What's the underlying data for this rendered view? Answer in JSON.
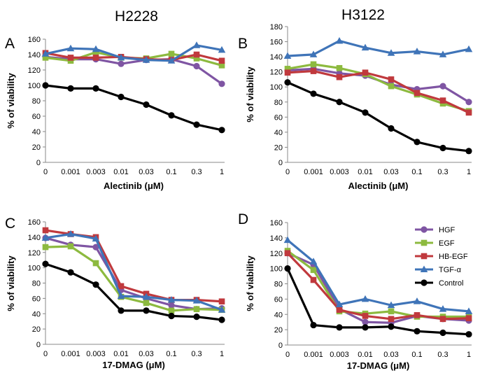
{
  "figure": {
    "col_titles": [
      "H2228",
      "H3122"
    ],
    "legend": [
      "HGF",
      "EGF",
      "HB-EGF",
      "TGF-α",
      "Control"
    ],
    "colors": {
      "HGF": "#7f55a3",
      "EGF": "#8dba3f",
      "HB-EGF": "#c0393d",
      "TGF-α": "#3f74b8",
      "Control": "#000000"
    }
  },
  "chart_data": [
    {
      "type": "line",
      "panel": "A",
      "title": "H2228",
      "xlabel": "Alectinib (μM)",
      "ylabel": "% of viability",
      "categories": [
        "0",
        "0.001",
        "0.003",
        "0.01",
        "0.03",
        "0.1",
        "0.3",
        "1"
      ],
      "ylim": [
        0,
        160
      ],
      "yticks": [
        0,
        20,
        40,
        60,
        80,
        100,
        120,
        140,
        160
      ],
      "grid": false,
      "series": [
        {
          "name": "HGF",
          "values": [
            137,
            134,
            134,
            128,
            133,
            134,
            125,
            102
          ]
        },
        {
          "name": "EGF",
          "values": [
            136,
            132,
            143,
            136,
            135,
            141,
            135,
            126
          ]
        },
        {
          "name": "HB-EGF",
          "values": [
            142,
            136,
            136,
            137,
            134,
            133,
            140,
            132
          ]
        },
        {
          "name": "TGF-α",
          "values": [
            141,
            148,
            147,
            136,
            133,
            132,
            152,
            146
          ]
        },
        {
          "name": "Control",
          "values": [
            100,
            96,
            96,
            85,
            75,
            61,
            49,
            42
          ]
        }
      ]
    },
    {
      "type": "line",
      "panel": "B",
      "title": "H3122",
      "xlabel": "Alectinib (μM)",
      "ylabel": "% of viability",
      "categories": [
        "0",
        "0.001",
        "0.003",
        "0.01",
        "0.03",
        "0.1",
        "0.3",
        "1"
      ],
      "ylim": [
        0,
        180
      ],
      "yticks": [
        0,
        20,
        40,
        60,
        80,
        100,
        120,
        140,
        160,
        180
      ],
      "grid": false,
      "series": [
        {
          "name": "HGF",
          "values": [
            122,
            124,
            118,
            115,
            103,
            97,
            101,
            80
          ]
        },
        {
          "name": "EGF",
          "values": [
            124,
            130,
            125,
            117,
            101,
            90,
            78,
            68
          ]
        },
        {
          "name": "HB-EGF",
          "values": [
            119,
            121,
            113,
            119,
            110,
            92,
            82,
            66
          ]
        },
        {
          "name": "TGF-α",
          "values": [
            141,
            143,
            161,
            152,
            145,
            147,
            143,
            150
          ]
        },
        {
          "name": "Control",
          "values": [
            106,
            91,
            80,
            66,
            45,
            27,
            19,
            15
          ]
        }
      ]
    },
    {
      "type": "line",
      "panel": "C",
      "title": "",
      "xlabel": "17-DMAG (μM)",
      "ylabel": "% of viability",
      "categories": [
        "0",
        "0.001",
        "0.003",
        "0.01",
        "0.03",
        "0.1",
        "0.3",
        "1"
      ],
      "ylim": [
        0,
        160
      ],
      "yticks": [
        0,
        20,
        40,
        60,
        80,
        100,
        120,
        140,
        160
      ],
      "grid": false,
      "series": [
        {
          "name": "HGF",
          "values": [
            139,
            130,
            127,
            71,
            60,
            51,
            46,
            47
          ]
        },
        {
          "name": "EGF",
          "values": [
            127,
            128,
            106,
            62,
            54,
            44,
            46,
            45
          ]
        },
        {
          "name": "HB-EGF",
          "values": [
            149,
            144,
            140,
            76,
            66,
            58,
            58,
            56
          ]
        },
        {
          "name": "TGF-α",
          "values": [
            139,
            144,
            138,
            63,
            62,
            58,
            57,
            45
          ]
        },
        {
          "name": "Control",
          "values": [
            105,
            94,
            78,
            44,
            44,
            37,
            36,
            32
          ]
        }
      ]
    },
    {
      "type": "line",
      "panel": "D",
      "title": "",
      "xlabel": "17-DMAG (μM)",
      "ylabel": "% of viability",
      "categories": [
        "0",
        "0.001",
        "0.003",
        "0.01",
        "0.03",
        "0.1",
        "0.3",
        "1"
      ],
      "ylim": [
        0,
        160
      ],
      "yticks": [
        0,
        20,
        40,
        60,
        80,
        100,
        120,
        140,
        160
      ],
      "grid": false,
      "legend_position": "top-right",
      "series": [
        {
          "name": "HGF",
          "values": [
            120,
            105,
            47,
            30,
            29,
            38,
            34,
            32
          ]
        },
        {
          "name": "EGF",
          "values": [
            123,
            98,
            44,
            41,
            44,
            37,
            37,
            37
          ]
        },
        {
          "name": "HB-EGF",
          "values": [
            120,
            85,
            46,
            38,
            34,
            39,
            34,
            35
          ]
        },
        {
          "name": "TGF-α",
          "values": [
            137,
            109,
            53,
            60,
            52,
            57,
            47,
            44
          ]
        },
        {
          "name": "Control",
          "values": [
            100,
            26,
            23,
            23,
            24,
            18,
            16,
            14
          ]
        }
      ]
    }
  ]
}
